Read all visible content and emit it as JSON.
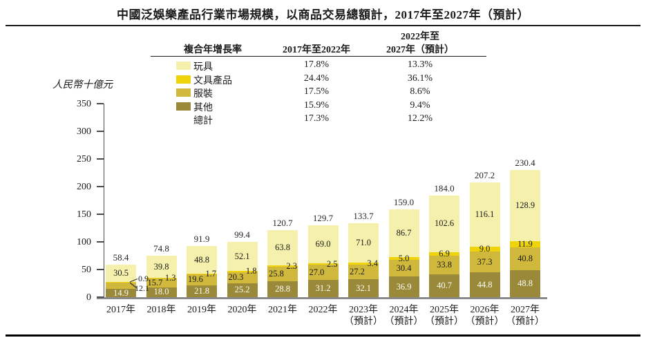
{
  "title": "中國泛娛樂產品行業市場規模，以商品交易總額計，2017年至2027年（預計）",
  "y_axis_unit": "人民幣十億元",
  "cagr_table": {
    "col1_header": "複合年增長率",
    "col2_header": "2017年至2022年",
    "col3_header_line1": "2022年至",
    "col3_header_line2": "2027年（預計）",
    "rows": [
      {
        "label": "玩具",
        "series_name": "玩具",
        "cagr_2017_2022": "17.8%",
        "cagr_2022_2027": "13.3%"
      },
      {
        "label": "文具產品",
        "series_name": "文具產品",
        "cagr_2017_2022": "24.4%",
        "cagr_2022_2027": "36.1%"
      },
      {
        "label": "服裝",
        "series_name": "服裝",
        "cagr_2017_2022": "17.5%",
        "cagr_2022_2027": "8.6%"
      },
      {
        "label": "其他",
        "series_name": "其他",
        "cagr_2017_2022": "15.9%",
        "cagr_2022_2027": "9.4%"
      },
      {
        "label": "總計",
        "series_name": null,
        "cagr_2017_2022": "17.3%",
        "cagr_2022_2027": "12.2%"
      }
    ]
  },
  "chart_data": {
    "type": "bar",
    "stacked": true,
    "ylabel": "人民幣十億元",
    "ylim": [
      0,
      350
    ],
    "yticks": [
      "0",
      "50",
      "100",
      "150",
      "200",
      "250",
      "300",
      "350"
    ],
    "grid": false,
    "legend_position": "top-table",
    "categories": [
      {
        "year": "2017年",
        "note": ""
      },
      {
        "year": "2018年",
        "note": ""
      },
      {
        "year": "2019年",
        "note": ""
      },
      {
        "year": "2020年",
        "note": ""
      },
      {
        "year": "2021年",
        "note": ""
      },
      {
        "year": "2022年",
        "note": ""
      },
      {
        "year": "2023年",
        "note": "（預計）"
      },
      {
        "year": "2024年",
        "note": "（預計）"
      },
      {
        "year": "2025年",
        "note": "（預計）"
      },
      {
        "year": "2026年",
        "note": "（預計）"
      },
      {
        "year": "2027年",
        "note": "（預計）"
      }
    ],
    "series": [
      {
        "name": "其他",
        "color": "#998938",
        "values": [
          "14.9",
          "18.0",
          "21.8",
          "25.2",
          "28.8",
          "31.2",
          "32.1",
          "36.9",
          "40.7",
          "44.8",
          "48.8"
        ]
      },
      {
        "name": "服裝",
        "color": "#D0B83C",
        "values": [
          "12.1",
          "15.7",
          "19.6",
          "20.3",
          "25.8",
          "27.0",
          "27.2",
          "30.4",
          "33.8",
          "37.3",
          "40.8"
        ]
      },
      {
        "name": "文具產品",
        "color": "#F0D40B",
        "values": [
          "0.9",
          "1.3",
          "1.7",
          "1.8",
          "2.3",
          "2.5",
          "3.4",
          "5.0",
          "6.9",
          "9.0",
          "11.9"
        ]
      },
      {
        "name": "玩具",
        "color": "#F5F0AC",
        "values": [
          "30.5",
          "39.8",
          "48.8",
          "52.1",
          "63.8",
          "69.0",
          "71.0",
          "86.7",
          "102.6",
          "116.1",
          "128.9"
        ]
      }
    ],
    "totals": [
      "58.4",
      "74.8",
      "91.9",
      "99.4",
      "120.7",
      "129.7",
      "133.7",
      "159.0",
      "184.0",
      "207.2",
      "230.4"
    ]
  }
}
